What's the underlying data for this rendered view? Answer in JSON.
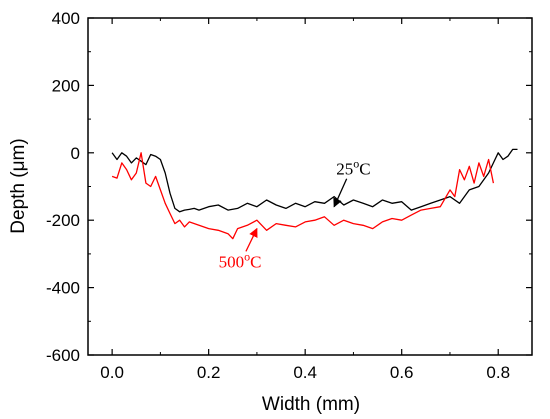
{
  "chart_data": {
    "type": "line",
    "xlabel": "Width (mm)",
    "ylabel": "Depth (μm)",
    "xlim": [
      -0.05,
      0.87
    ],
    "ylim": [
      -600,
      400
    ],
    "xticks": [
      "0.0",
      "0.2",
      "0.4",
      "0.6",
      "0.8"
    ],
    "yticks": [
      "400",
      "200",
      "0",
      "-200",
      "-400",
      "-600"
    ],
    "grid": false,
    "legend": "none",
    "series": [
      {
        "name": "25°C",
        "color": "#000000",
        "x": [
          0.0,
          0.01,
          0.02,
          0.03,
          0.04,
          0.05,
          0.06,
          0.07,
          0.08,
          0.09,
          0.1,
          0.11,
          0.12,
          0.13,
          0.14,
          0.15,
          0.16,
          0.17,
          0.18,
          0.2,
          0.22,
          0.24,
          0.26,
          0.28,
          0.3,
          0.32,
          0.34,
          0.36,
          0.38,
          0.4,
          0.42,
          0.44,
          0.46,
          0.48,
          0.5,
          0.52,
          0.54,
          0.56,
          0.58,
          0.6,
          0.62,
          0.64,
          0.66,
          0.68,
          0.7,
          0.72,
          0.74,
          0.76,
          0.78,
          0.79,
          0.8,
          0.81,
          0.82,
          0.83,
          0.84
        ],
        "y": [
          0,
          -20,
          0,
          -10,
          -30,
          -15,
          -25,
          -35,
          -5,
          -10,
          -20,
          -60,
          -120,
          -165,
          -175,
          -170,
          -168,
          -165,
          -170,
          -160,
          -155,
          -170,
          -165,
          -150,
          -160,
          -140,
          -155,
          -165,
          -150,
          -160,
          -145,
          -150,
          -130,
          -155,
          -140,
          -150,
          -160,
          -140,
          -150,
          -145,
          -170,
          -160,
          -150,
          -140,
          -130,
          -150,
          -110,
          -100,
          -60,
          -30,
          0,
          -20,
          -10,
          10,
          10
        ]
      },
      {
        "name": "500°C",
        "color": "#ff0000",
        "x": [
          0.0,
          0.01,
          0.02,
          0.03,
          0.04,
          0.05,
          0.06,
          0.07,
          0.08,
          0.09,
          0.1,
          0.11,
          0.12,
          0.13,
          0.14,
          0.15,
          0.16,
          0.18,
          0.2,
          0.22,
          0.24,
          0.25,
          0.26,
          0.28,
          0.3,
          0.32,
          0.34,
          0.36,
          0.38,
          0.4,
          0.42,
          0.44,
          0.46,
          0.48,
          0.5,
          0.52,
          0.54,
          0.56,
          0.58,
          0.6,
          0.62,
          0.64,
          0.66,
          0.68,
          0.7,
          0.71,
          0.72,
          0.73,
          0.74,
          0.75,
          0.76,
          0.77,
          0.78,
          0.79
        ],
        "y": [
          -70,
          -75,
          -30,
          -50,
          -80,
          -60,
          0,
          -90,
          -100,
          -70,
          -110,
          -150,
          -180,
          -210,
          -200,
          -220,
          -205,
          -215,
          -225,
          -230,
          -240,
          -255,
          -225,
          -215,
          -200,
          -230,
          -210,
          -215,
          -220,
          -205,
          -200,
          -190,
          -215,
          -200,
          -210,
          -215,
          -225,
          -205,
          -195,
          -200,
          -185,
          -170,
          -165,
          -160,
          -110,
          -130,
          -50,
          -80,
          -40,
          -90,
          -30,
          -70,
          -20,
          -90
        ]
      }
    ],
    "annotations": [
      {
        "text": "25",
        "sup": "o",
        "unit": "C",
        "color": "#000000",
        "x": 0.5,
        "y": -65,
        "arrow_to": [
          0.46,
          -160
        ]
      },
      {
        "text": "500",
        "sup": "o",
        "unit": "C",
        "color": "#ff0000",
        "x": 0.265,
        "y": -340,
        "arrow_to": [
          0.3,
          -225
        ]
      }
    ]
  }
}
